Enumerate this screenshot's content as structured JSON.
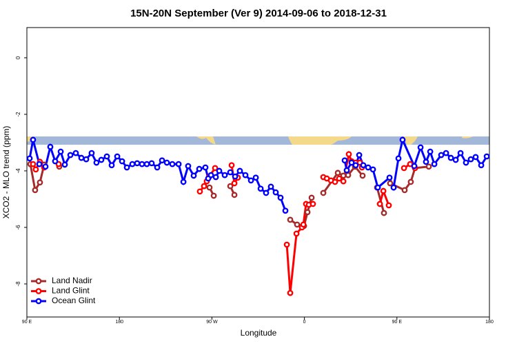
{
  "chart_data": {
    "type": "line",
    "title": "15N-20N September (Ver 9)   2014-09-06 to 2018-12-31",
    "x_label": "Longitude",
    "y_label": "XCO2 - MLO trend (ppm)",
    "xlim": [
      90,
      540
    ],
    "ylim": [
      -9.17,
      1.07
    ],
    "xticks": [
      {
        "value": 90,
        "label": "90 E"
      },
      {
        "value": 180,
        "label": "180"
      },
      {
        "value": 270,
        "label": "90 W"
      },
      {
        "value": 360,
        "label": "0"
      },
      {
        "value": 450,
        "label": "90 E"
      },
      {
        "value": 540,
        "label": "180"
      }
    ],
    "yticks": [
      0,
      -2,
      -4,
      -6,
      -8
    ],
    "legend": "bottom-left",
    "series": [
      {
        "name": "Land Nadir",
        "color": "#a52a2a",
        "x": [
          93.4,
          98.0,
          102.7,
          106.8,
          null,
          121.5,
          null,
          262.4,
          267.7,
          271.8,
          null,
          287.9,
          291.9,
          null,
          346.2,
          352.9,
          359.6,
          363.0,
          367.0,
          null,
          378.4,
          392.5,
          397.9,
          402.5,
          409.2,
          416.6,
          null,
          430.7,
          437.4,
          null,
          443.4,
          457.5,
          463.5,
          467.6,
          481.0
        ],
        "values": [
          -3.76,
          -4.68,
          -4.41,
          -3.78,
          null,
          -3.85,
          null,
          -4.54,
          -4.59,
          -4.88,
          null,
          -4.54,
          -4.85,
          null,
          -5.73,
          -5.9,
          -5.95,
          -5.46,
          -4.95,
          null,
          -4.78,
          -4.07,
          -4.17,
          -4.15,
          -3.85,
          -4.17,
          null,
          -4.59,
          -5.49,
          null,
          -4.44,
          -4.68,
          -4.39,
          -3.9,
          -3.85
        ]
      },
      {
        "name": "Land Glint",
        "color": "#ff0000",
        "x": [
          96.0,
          98.7,
          102.7,
          106.8,
          null,
          120.9,
          null,
          258.3,
          262.4,
          265.0,
          267.1,
          273.1,
          null,
          289.2,
          291.9,
          295.2,
          null,
          342.9,
          346.2,
          352.3,
          357.6,
          359.0,
          361.6,
          364.3,
          368.3,
          null,
          378.4,
          381.8,
          385.8,
          389.8,
          393.8,
          397.9,
          403.2,
          405.9,
          409.9,
          413.9,
          416.0,
          null,
          433.4,
          436.8,
          442.1,
          null,
          456.9,
          462.9,
          467.6
        ],
        "values": [
          -3.76,
          -3.95,
          -3.68,
          -3.88,
          null,
          -3.76,
          null,
          -4.73,
          -4.54,
          -4.37,
          -4.22,
          -3.9,
          null,
          -3.8,
          -4.44,
          -4.24,
          null,
          -6.61,
          -8.32,
          -6.22,
          -6.0,
          -5.9,
          -5.17,
          -5.2,
          -5.17,
          null,
          -4.22,
          -4.27,
          -4.34,
          -4.39,
          -4.27,
          -4.37,
          -3.41,
          -3.66,
          -3.71,
          -3.71,
          -3.88,
          null,
          -5.17,
          -4.71,
          -5.22,
          null,
          -3.9,
          -3.76,
          -3.9
        ]
      },
      {
        "name": "Ocean Glint",
        "color": "#0000ff",
        "x": [
          92.7,
          96.0,
          102.1,
          108.1,
          112.8,
          117.5,
          122.9,
          126.9,
          132.3,
          137.6,
          143.0,
          147.7,
          153.0,
          157.7,
          162.4,
          167.8,
          172.5,
          177.9,
          182.6,
          187.3,
          192.6,
          197.3,
          202.0,
          206.7,
          211.4,
          216.8,
          221.5,
          226.2,
          231.5,
          237.6,
          242.3,
          246.9,
          252.3,
          257.7,
          263.7,
          266.4,
          269.1,
          273.8,
          277.1,
          282.5,
          287.9,
          292.6,
          297.2,
          302.6,
          308.0,
          312.7,
          317.4,
          322.7,
          327.4,
          332.1,
          336.8,
          341.5,
          null,
          399.2,
          401.2,
          405.9,
          409.9,
          413.3,
          417.3,
          422.0,
          426.7,
          431.4,
          442.8,
          446.8,
          451.5,
          455.5,
          466.9,
          473.0,
          478.3,
          482.4,
          486.4,
          493.1,
          497.8,
          502.5,
          507.2,
          511.9,
          517.2,
          521.9,
          526.6,
          532.0,
          537.4
        ],
        "values": [
          -3.56,
          -2.9,
          -3.76,
          -3.85,
          -3.15,
          -3.66,
          -3.32,
          -3.78,
          -3.44,
          -3.37,
          -3.54,
          -3.59,
          -3.37,
          -3.71,
          -3.61,
          -3.49,
          -3.8,
          -3.49,
          -3.66,
          -3.88,
          -3.76,
          -3.73,
          -3.76,
          -3.76,
          -3.73,
          -3.88,
          -3.63,
          -3.71,
          -3.76,
          -3.76,
          -4.39,
          -3.83,
          -4.17,
          -3.93,
          -3.88,
          -4.27,
          -4.15,
          -4.22,
          -4.0,
          -4.15,
          -4.05,
          -4.2,
          -4.0,
          -4.15,
          -4.34,
          -4.24,
          -4.63,
          -4.78,
          -4.56,
          -4.76,
          -4.95,
          -5.41,
          null,
          -3.63,
          -3.98,
          -3.71,
          -3.8,
          -3.44,
          -3.8,
          -3.88,
          -3.95,
          -4.59,
          -4.24,
          -4.59,
          -3.56,
          -2.9,
          -3.83,
          -3.17,
          -3.68,
          -3.32,
          -3.76,
          -3.44,
          -3.37,
          -3.54,
          -3.61,
          -3.37,
          -3.71,
          -3.59,
          -3.51,
          -3.8,
          -3.49
        ]
      }
    ]
  }
}
